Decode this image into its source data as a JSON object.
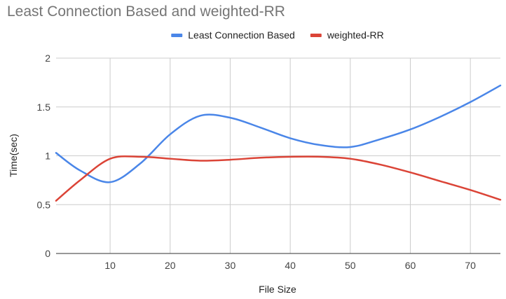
{
  "chart_data": {
    "type": "line",
    "title": "Least Connection Based and weighted-RR",
    "xlabel": "File Size",
    "ylabel": "Time(sec)",
    "xlim": [
      1,
      75
    ],
    "ylim": [
      0,
      2
    ],
    "x_ticks": [
      10,
      20,
      30,
      40,
      50,
      60,
      70
    ],
    "y_ticks": [
      0,
      0.5,
      1,
      1.5,
      2
    ],
    "x_tick_labels": [
      "10",
      "20",
      "30",
      "40",
      "50",
      "60",
      "70"
    ],
    "y_tick_labels": [
      "0",
      "0.5",
      "1",
      "1.5",
      "2"
    ],
    "grid": true,
    "legend_position": "top",
    "smooth": true,
    "series": [
      {
        "name": "Least Connection Based",
        "color": "#4a86e8",
        "x": [
          1,
          5,
          10,
          15,
          20,
          25,
          30,
          35,
          40,
          45,
          50,
          55,
          60,
          65,
          70,
          75
        ],
        "y": [
          1.03,
          0.85,
          0.73,
          0.92,
          1.22,
          1.41,
          1.39,
          1.29,
          1.18,
          1.11,
          1.09,
          1.17,
          1.27,
          1.4,
          1.55,
          1.72
        ]
      },
      {
        "name": "weighted-RR",
        "color": "#db4437",
        "x": [
          1,
          5,
          10,
          15,
          20,
          25,
          30,
          35,
          40,
          45,
          50,
          55,
          60,
          65,
          70,
          75
        ],
        "y": [
          0.54,
          0.75,
          0.97,
          0.99,
          0.97,
          0.95,
          0.96,
          0.98,
          0.99,
          0.99,
          0.97,
          0.91,
          0.83,
          0.74,
          0.65,
          0.55
        ]
      }
    ]
  }
}
